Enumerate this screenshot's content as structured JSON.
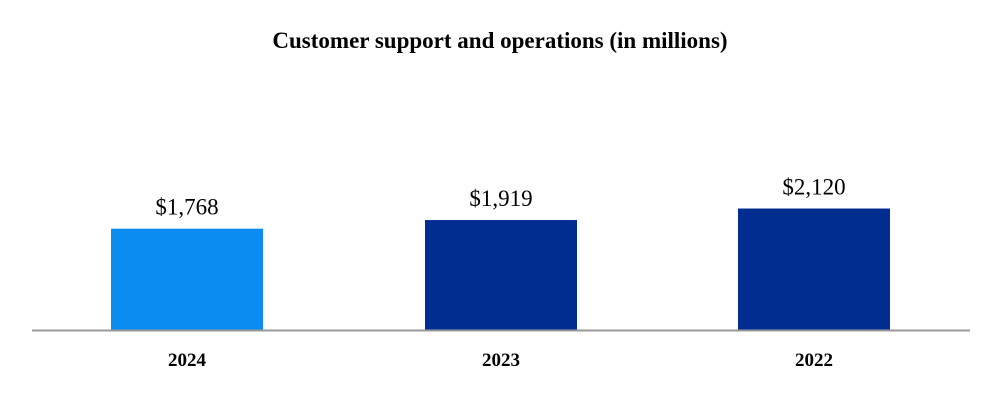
{
  "chart_data": {
    "type": "bar",
    "title": "Customer support and operations (in millions)",
    "categories": [
      "2024",
      "2023",
      "2022"
    ],
    "values": [
      1768,
      1919,
      2120
    ],
    "value_labels": [
      "$1,768",
      "$1,919",
      "$2,120"
    ],
    "bar_colors": [
      "#0a8cf0",
      "#002d8f",
      "#002d8f"
    ],
    "axis_color": "#999999",
    "xlabel": "",
    "ylabel": "",
    "ylim": [
      0,
      2500
    ],
    "grid": false,
    "legend": "none"
  }
}
